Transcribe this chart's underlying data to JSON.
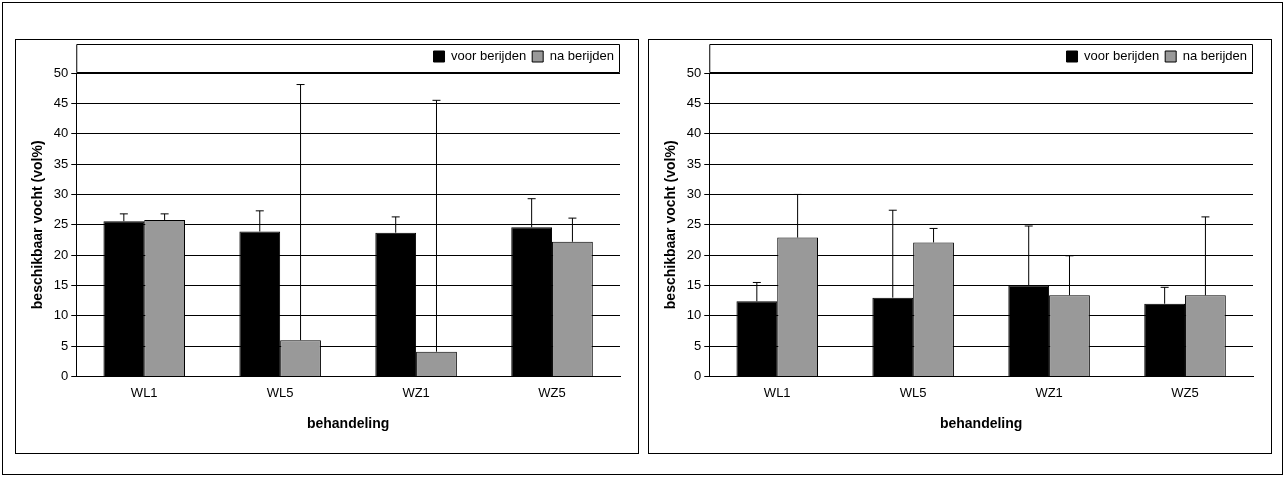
{
  "chart_data": [
    {
      "type": "bar",
      "categories": [
        "WL1",
        "WL5",
        "WZ1",
        "WZ5"
      ],
      "xlabel": "behandeling",
      "ylabel": "beschikbaar vocht (vol%)",
      "ylim": [
        0,
        50
      ],
      "yticks": [
        0,
        5,
        10,
        15,
        20,
        25,
        30,
        35,
        40,
        45,
        50
      ],
      "grid": "y",
      "legend": "top right",
      "series": [
        {
          "name": "voor berijden",
          "color": "#000000",
          "values": [
            25.6,
            23.9,
            23.7,
            24.6
          ],
          "errors": [
            [
              25.6,
              26.8
            ],
            [
              23.9,
              27.3
            ],
            [
              23.7,
              26.3
            ],
            [
              24.6,
              29.3
            ]
          ]
        },
        {
          "name": "na berijden",
          "color": "#999999",
          "values": [
            25.8,
            6,
            4.1,
            22.2
          ],
          "errors": [
            [
              25.8,
              26.8
            ],
            [
              6,
              48.1
            ],
            [
              4.1,
              45.5
            ],
            [
              22.2,
              26.1
            ]
          ]
        }
      ]
    },
    {
      "type": "bar",
      "categories": [
        "WL1",
        "WL5",
        "WZ1",
        "WZ5"
      ],
      "xlabel": "behandeling",
      "ylabel": "beschikbaar vocht (vol%)",
      "ylim": [
        0,
        50
      ],
      "yticks": [
        0,
        5,
        10,
        15,
        20,
        25,
        30,
        35,
        40,
        45,
        50
      ],
      "grid": "y",
      "legend": "top right",
      "series": [
        {
          "name": "voor berijden",
          "color": "#000000",
          "values": [
            12.4,
            13,
            15,
            12
          ],
          "errors": [
            [
              12.4,
              15.5
            ],
            [
              13,
              27.4
            ],
            [
              15,
              24.8
            ],
            [
              12,
              14.7
            ]
          ]
        },
        {
          "name": "na berijden",
          "color": "#999999",
          "values": [
            22.9,
            22.1,
            13.4,
            13.4
          ],
          "errors": [
            [
              22.9,
              30
            ],
            [
              22.1,
              24.4
            ],
            [
              13.4,
              19.9
            ],
            [
              13.4,
              26.3
            ]
          ]
        }
      ]
    }
  ]
}
